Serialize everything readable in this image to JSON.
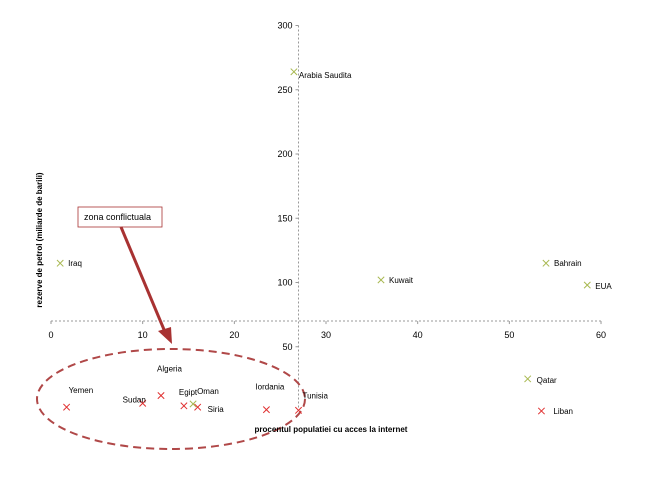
{
  "chart_data": {
    "type": "scatter",
    "title": "",
    "xlabel": "procentul populatiei cu acces la internet",
    "ylabel": "rezerve de petrol (miliarde de barili)",
    "xlim": [
      0,
      60
    ],
    "ylim": [
      0,
      300
    ],
    "x_ticks": [
      0,
      10,
      20,
      30,
      40,
      50,
      60
    ],
    "y_ticks": [
      50,
      100,
      150,
      200,
      250,
      300
    ],
    "cross_x": 27,
    "cross_y": 70,
    "grid": false,
    "legend": "none",
    "colors": {
      "conflict": "#e03030",
      "stable": "#a8b850",
      "ellipse": "#b04848",
      "arrow": "#a83232",
      "axis": "#999999"
    },
    "series": [
      {
        "points": [
          {
            "label": "Yemen",
            "x": 1.7,
            "y": 3
          },
          {
            "label": "Sudan",
            "x": 10,
            "y": 6
          },
          {
            "label": "Algeria",
            "x": 12,
            "y": 12
          },
          {
            "label": "Egipt",
            "x": 14.5,
            "y": 4
          },
          {
            "label": "Siria",
            "x": 16,
            "y": 3
          },
          {
            "label": "Iordania",
            "x": 23.5,
            "y": 1
          },
          {
            "label": "Tunisia",
            "x": 27,
            "y": 0.5
          },
          {
            "label": "Liban",
            "x": 53.5,
            "y": 0
          }
        ]
      },
      {
        "points": [
          {
            "label": "Arabia Saudita",
            "x": 26.5,
            "y": 264
          },
          {
            "label": "Iraq",
            "x": 1,
            "y": 115
          },
          {
            "label": "Kuwait",
            "x": 36,
            "y": 102
          },
          {
            "label": "Bahrain",
            "x": 54,
            "y": 115
          },
          {
            "label": "EUA",
            "x": 58.5,
            "y": 98
          },
          {
            "label": "Qatar",
            "x": 52,
            "y": 25
          },
          {
            "label": "Oman",
            "x": 15.5,
            "y": 5.5
          }
        ]
      }
    ],
    "annotations": [
      {
        "text": "zona conflictuala"
      }
    ]
  }
}
